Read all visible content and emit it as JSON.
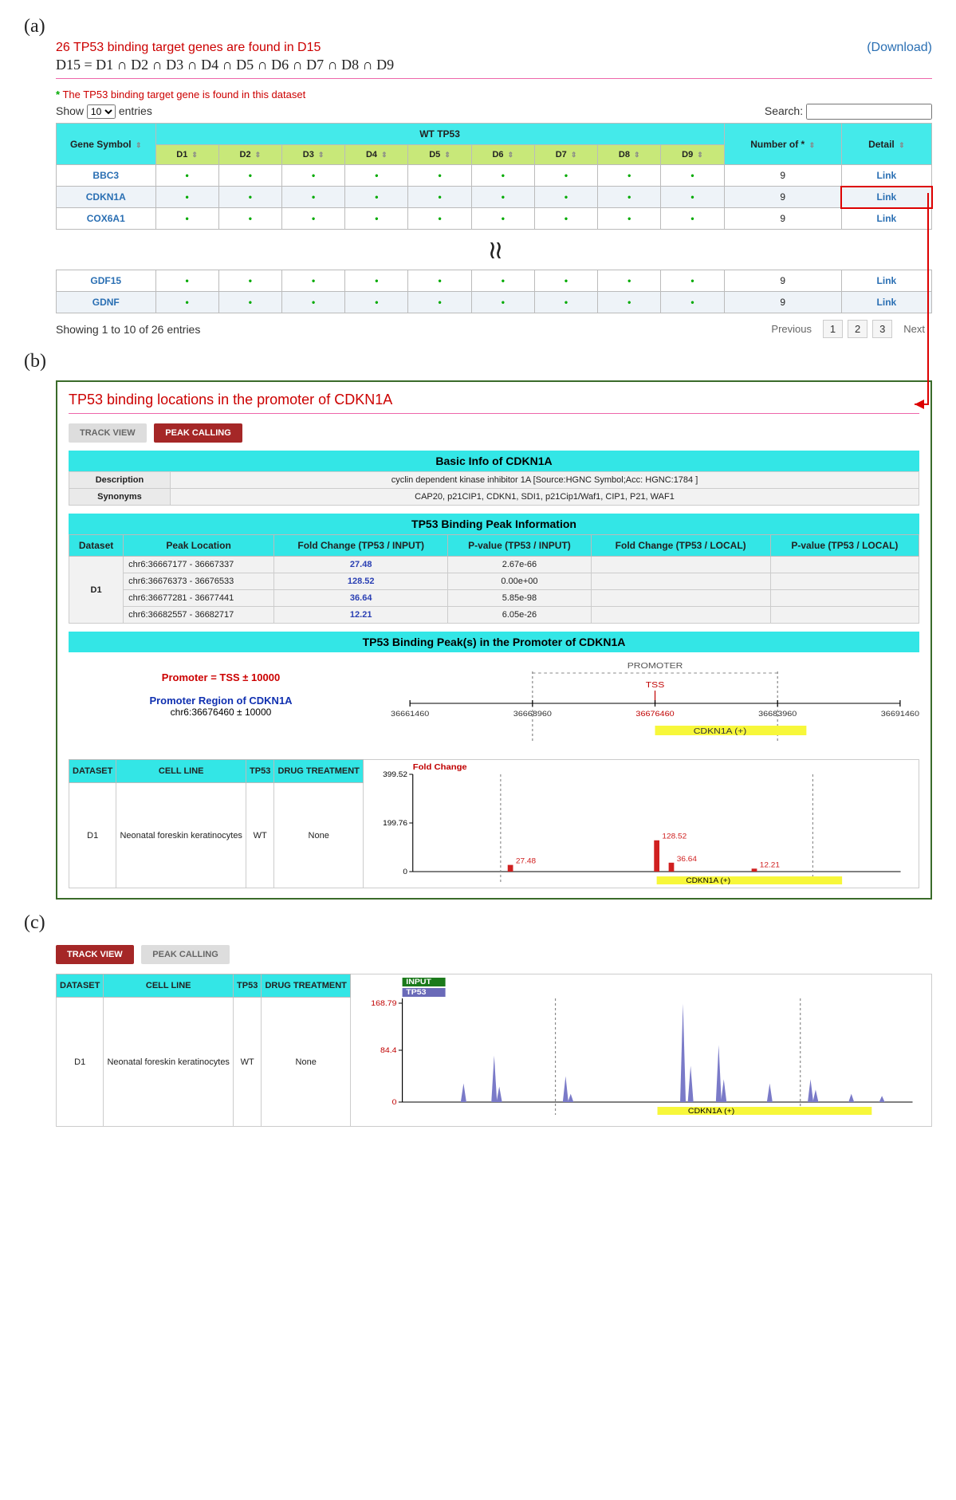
{
  "panelA": {
    "label": "(a)",
    "title": "26 TP53 binding target genes are found in D15",
    "download": "(Download)",
    "formula": "D15 = D1 ∩ D2 ∩ D3 ∩ D4 ∩ D5 ∩ D6 ∩ D7 ∩ D8 ∩ D9",
    "note": "The TP53 binding target gene is found in this dataset",
    "show_prefix": "Show",
    "show_val": "10",
    "show_suffix": "entries",
    "search_label": "Search:",
    "wt_header": "WT TP53",
    "cols": {
      "gene": "Gene Symbol",
      "d": [
        "D1",
        "D2",
        "D3",
        "D4",
        "D5",
        "D6",
        "D7",
        "D8",
        "D9"
      ],
      "num": "Number of *",
      "detail": "Detail"
    },
    "rows_top": [
      {
        "gene": "BBC3",
        "n": "9",
        "link": "Link",
        "hl": false
      },
      {
        "gene": "CDKN1A",
        "n": "9",
        "link": "Link",
        "hl": true
      },
      {
        "gene": "COX6A1",
        "n": "9",
        "link": "Link",
        "hl": false
      }
    ],
    "skip": "≀≀",
    "rows_bot": [
      {
        "gene": "GDF15",
        "n": "9",
        "link": "Link"
      },
      {
        "gene": "GDNF",
        "n": "9",
        "link": "Link"
      }
    ],
    "info": "Showing 1 to 10 of 26 entries",
    "pager": {
      "prev": "Previous",
      "pages": [
        "1",
        "2",
        "3"
      ],
      "next": "Next"
    }
  },
  "panelB": {
    "label": "(b)",
    "title": "TP53 binding locations in the promoter of CDKN1A",
    "btn_track": "TRACK VIEW",
    "btn_peak": "PEAK CALLING",
    "basic_hdr": "Basic Info of CDKN1A",
    "basic": [
      {
        "k": "Description",
        "v": "cyclin dependent kinase inhibitor 1A [Source:HGNC Symbol;Acc: HGNC:1784 ]"
      },
      {
        "k": "Synonyms",
        "v": "CAP20, p21CIP1, CDKN1, SDI1, p21Cip1/Waf1, CIP1, P21, WAF1"
      }
    ],
    "peak_hdr": "TP53 Binding Peak Information",
    "peak_cols": [
      "Dataset",
      "Peak Location",
      "Fold Change (TP53 / INPUT)",
      "P-value (TP53 / INPUT)",
      "Fold Change (TP53 / LOCAL)",
      "P-value (TP53 / LOCAL)"
    ],
    "peak_ds": "D1",
    "peak_rows": [
      {
        "loc": "chr6:36667177 - 36667337",
        "fc": "27.48",
        "pv": "2.67e-66"
      },
      {
        "loc": "chr6:36676373 - 36676533",
        "fc": "128.52",
        "pv": "0.00e+00"
      },
      {
        "loc": "chr6:36677281 - 36677441",
        "fc": "36.64",
        "pv": "5.85e-98"
      },
      {
        "loc": "chr6:36682557 - 36682717",
        "fc": "12.21",
        "pv": "6.05e-26"
      }
    ],
    "prom_hdr": "TP53 Binding Peak(s) in the Promoter of CDKN1A",
    "prom": {
      "l1": "Promoter = TSS ± 10000",
      "l2": "Promoter Region of CDKN1A",
      "l3": "chr6:36676460 ± 10000",
      "diagram": {
        "label_promoter": "PROMOTER",
        "label_tss": "TSS",
        "ticks": [
          "36661460",
          "36668960",
          "36676460",
          "36683960",
          "36691460"
        ],
        "tss_color": "#c00000",
        "gene_label": "CDKN1A (+)",
        "gene_color": "#f7f73a"
      }
    },
    "meta_cols": [
      "DATASET",
      "CELL LINE",
      "TP53",
      "DRUG TREATMENT"
    ],
    "meta_row": {
      "ds": "D1",
      "cell": "Neonatal foreskin keratinocytes",
      "tp53": "WT",
      "drug": "None"
    },
    "fc_chart": {
      "title": "Fold Change",
      "title_color": "#c00000",
      "ymax": 399.52,
      "ytick": 199.76,
      "bar_color": "#d02020",
      "gene_label": "CDKN1A (+)",
      "gene_color": "#f7f73a",
      "peaks": [
        {
          "x": 0.2,
          "val": 27.48,
          "lbl": "27.48"
        },
        {
          "x": 0.5,
          "val": 128.52,
          "lbl": "128.52"
        },
        {
          "x": 0.53,
          "val": 36.64,
          "lbl": "36.64"
        },
        {
          "x": 0.7,
          "val": 12.21,
          "lbl": "12.21"
        }
      ],
      "dashed_x": [
        0.18,
        0.82
      ]
    }
  },
  "panelC": {
    "label": "(c)",
    "btn_track": "TRACK VIEW",
    "btn_peak": "PEAK CALLING",
    "meta_cols": [
      "DATASET",
      "CELL LINE",
      "TP53",
      "DRUG TREATMENT"
    ],
    "meta_row": {
      "ds": "D1",
      "cell": "Neonatal foreskin keratinocytes",
      "tp53": "WT",
      "drug": "None"
    },
    "legend": [
      {
        "text": "INPUT",
        "bg": "#1b7a1b",
        "color": "#fff"
      },
      {
        "text": "TP53",
        "bg": "#6a6ab8",
        "color": "#fff"
      }
    ],
    "track": {
      "ymax": 168.79,
      "ytick": 84.4,
      "ylabel_color": "#c00000",
      "tp53_color": "#7a7ac8",
      "input_color": "#2a8a2a",
      "gene_label": "CDKN1A (+)",
      "gene_color": "#f7f73a",
      "dashed_x": [
        0.3,
        0.78
      ],
      "tp53_peaks": [
        {
          "x": 0.12,
          "h": 0.18
        },
        {
          "x": 0.18,
          "h": 0.45
        },
        {
          "x": 0.19,
          "h": 0.15
        },
        {
          "x": 0.32,
          "h": 0.25
        },
        {
          "x": 0.33,
          "h": 0.08
        },
        {
          "x": 0.55,
          "h": 0.95
        },
        {
          "x": 0.565,
          "h": 0.35
        },
        {
          "x": 0.62,
          "h": 0.55
        },
        {
          "x": 0.63,
          "h": 0.22
        },
        {
          "x": 0.72,
          "h": 0.18
        },
        {
          "x": 0.8,
          "h": 0.22
        },
        {
          "x": 0.81,
          "h": 0.12
        },
        {
          "x": 0.88,
          "h": 0.08
        },
        {
          "x": 0.94,
          "h": 0.06
        }
      ],
      "input_peaks": [
        {
          "x": 0.12,
          "h": 0.03
        },
        {
          "x": 0.18,
          "h": 0.05
        },
        {
          "x": 0.32,
          "h": 0.04
        },
        {
          "x": 0.55,
          "h": 0.06
        },
        {
          "x": 0.62,
          "h": 0.05
        },
        {
          "x": 0.8,
          "h": 0.04
        }
      ]
    }
  }
}
